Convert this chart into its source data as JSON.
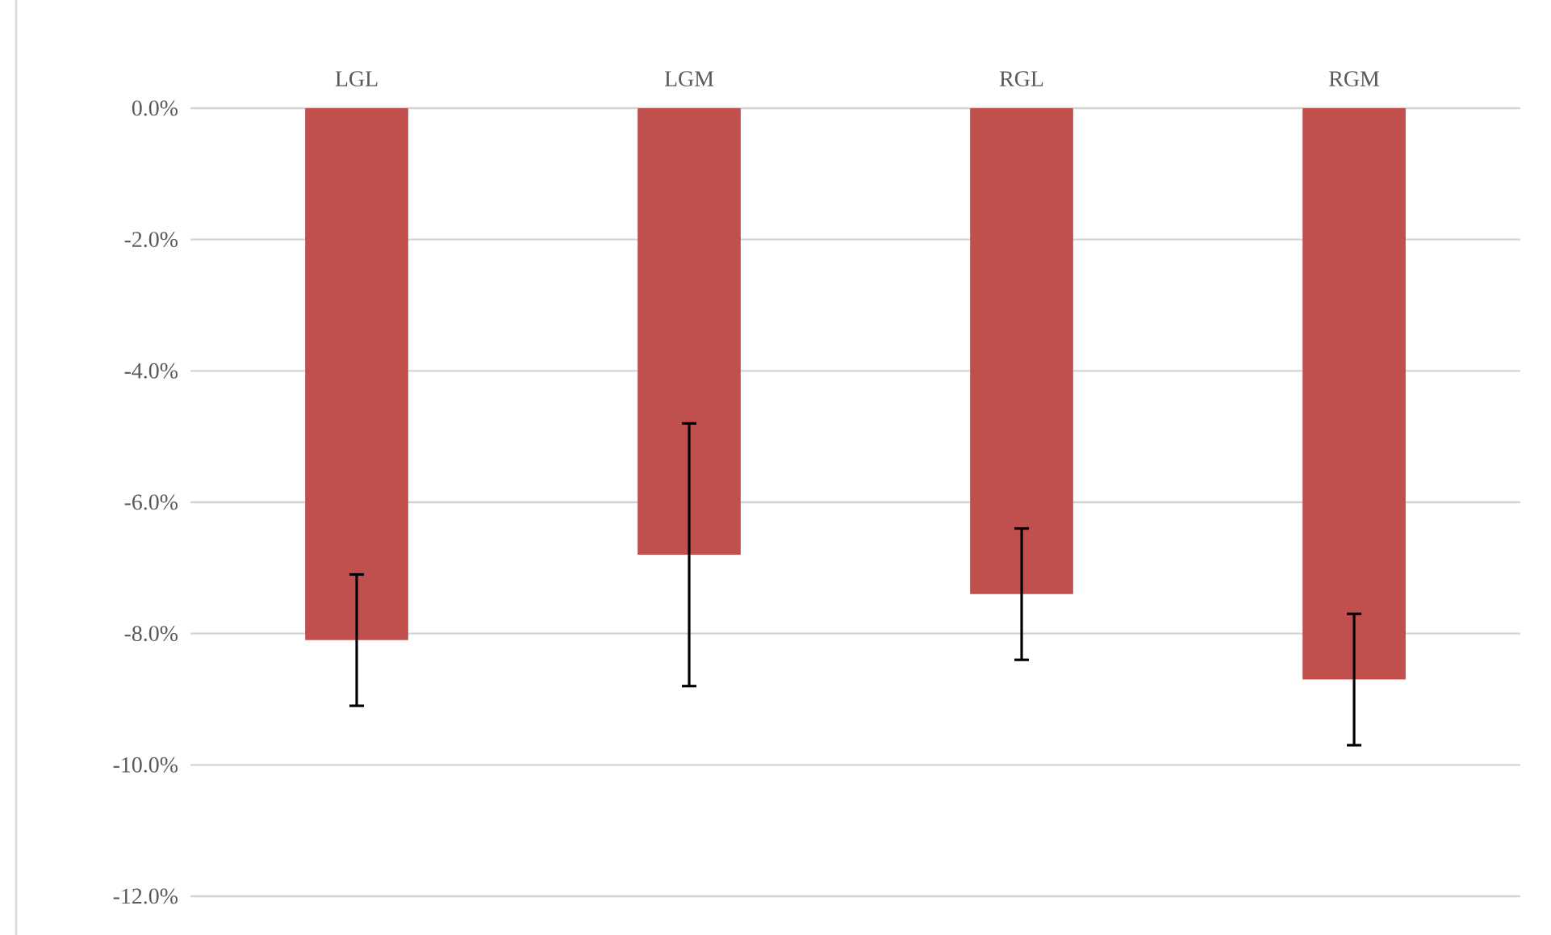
{
  "chart_data": {
    "type": "bar",
    "categories": [
      "LGL",
      "LGM",
      "RGL",
      "RGM"
    ],
    "values": [
      -8.1,
      -6.8,
      -7.4,
      -8.7
    ],
    "errors": [
      1.0,
      2.0,
      1.0,
      1.0
    ],
    "color": "#c0504d",
    "ylim": [
      -12,
      0
    ],
    "yticks": [
      {
        "value": -12,
        "label": "-12.0%"
      },
      {
        "value": -10,
        "label": "-10.0%"
      },
      {
        "value": -8,
        "label": "-8.0%"
      },
      {
        "value": -6,
        "label": "-6.0%"
      },
      {
        "value": -4,
        "label": "-4.0%"
      },
      {
        "value": -2,
        "label": "-2.0%"
      },
      {
        "value": 0,
        "label": "0.0%"
      }
    ],
    "grid": "y"
  }
}
